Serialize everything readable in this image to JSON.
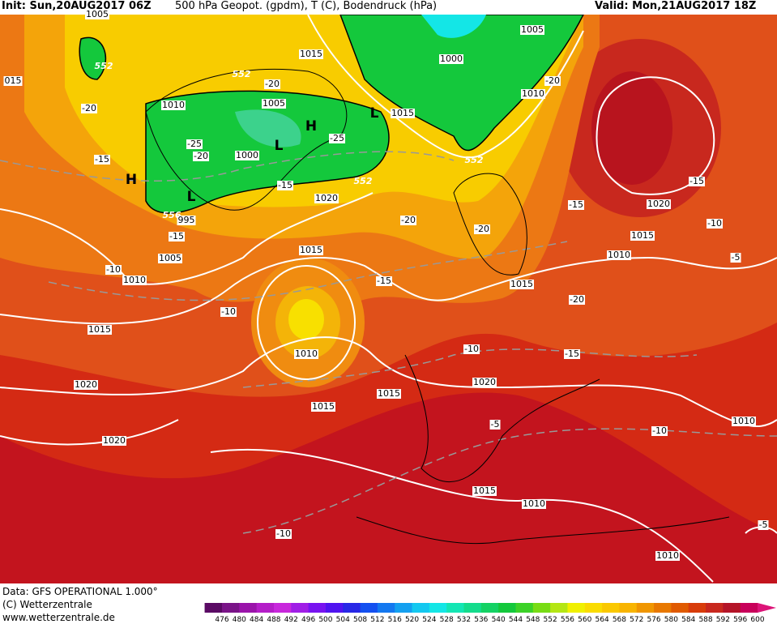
{
  "header": {
    "init": "Init: Sun,20AUG2017 06Z",
    "title": "500 hPa Geopot. (gpdm), T (C), Bodendruck (hPa)",
    "valid": "Valid: Mon,21AUG2017 18Z"
  },
  "map": {
    "labels": [
      "1005",
      "552",
      "015",
      "1015",
      "1005",
      "1000",
      "552",
      "-20",
      "-20",
      "1010",
      "1005",
      "1010",
      "-20",
      "1015",
      "H",
      "L",
      "L",
      "-25",
      "-25",
      "-20",
      "1000",
      "-15",
      "H",
      "L",
      "552",
      "552",
      "-15",
      "-15",
      "1020",
      "1020",
      "-15",
      "556",
      "995",
      "-20",
      "-10",
      "-15",
      "-20",
      "1015",
      "1015",
      "1005",
      "1010",
      "-5",
      "-10",
      "1010",
      "-15",
      "1015",
      "-20",
      "-10",
      "1015",
      "1010",
      "-10",
      "-15",
      "1020",
      "1020",
      "1015",
      "1015",
      "-5",
      "1010",
      "-10",
      "1020",
      "1015",
      "1010",
      "-10",
      "-5",
      "1010"
    ]
  },
  "footer": {
    "data": "Data: GFS OPERATIONAL 1.000°",
    "copyright": "(C) Wetterzentrale",
    "url": "www.wetterzentrale.de"
  },
  "legend": {
    "labels": [
      476,
      480,
      484,
      488,
      492,
      496,
      500,
      504,
      508,
      512,
      516,
      520,
      524,
      528,
      532,
      536,
      540,
      544,
      548,
      552,
      556,
      560,
      564,
      568,
      572,
      576,
      580,
      584,
      588,
      592,
      596,
      600
    ],
    "colors": [
      "#3c0a46",
      "#5a0a64",
      "#7a1488",
      "#9a14aa",
      "#b41ec8",
      "#c828dc",
      "#a01ee6",
      "#7814f0",
      "#5014f0",
      "#2828e6",
      "#1450f0",
      "#1478f0",
      "#14a0f0",
      "#14c8f0",
      "#14e6e6",
      "#14e6b4",
      "#14dc8c",
      "#14d264",
      "#14c83c",
      "#3cd228",
      "#78dc14",
      "#b4e614",
      "#f0f000",
      "#fadc00",
      "#fac800",
      "#f8b400",
      "#f09600",
      "#e87800",
      "#e05a00",
      "#d83c0a",
      "#c8281e",
      "#b41428",
      "#c8005a",
      "#dc1478"
    ]
  }
}
